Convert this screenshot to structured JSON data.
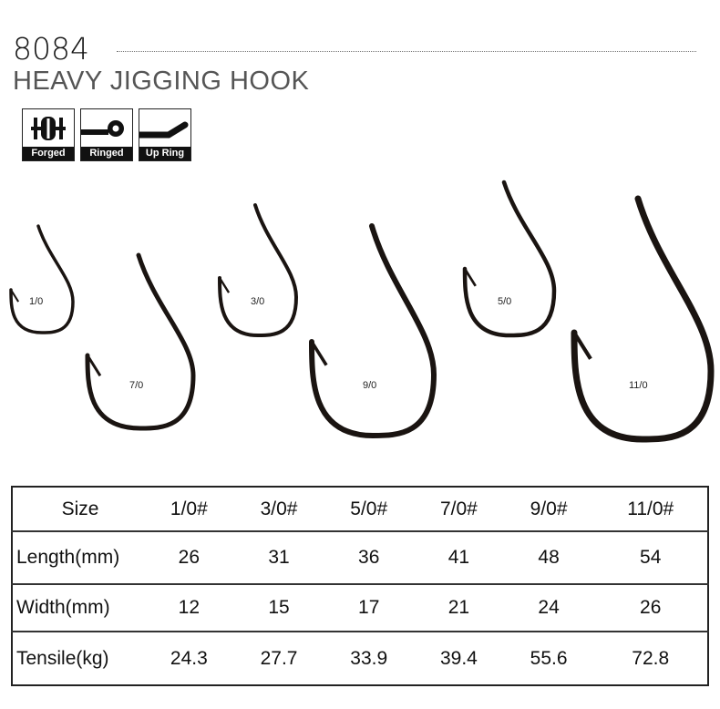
{
  "header": {
    "model": "8084",
    "title": "HEAVY JIGGING HOOK"
  },
  "badges": [
    {
      "label": "Forged",
      "icon": "forged-icon"
    },
    {
      "label": "Ringed",
      "icon": "ringed-eye-icon"
    },
    {
      "label": "Up Ring",
      "icon": "up-ring-icon"
    }
  ],
  "hooks": [
    {
      "size": "1/0"
    },
    {
      "size": "7/0"
    },
    {
      "size": "3/0"
    },
    {
      "size": "9/0"
    },
    {
      "size": "5/0"
    },
    {
      "size": "11/0"
    }
  ],
  "table": {
    "headers": [
      "Size",
      "1/0#",
      "3/0#",
      "5/0#",
      "7/0#",
      "9/0#",
      "11/0#"
    ],
    "rows": [
      [
        "Length(mm)",
        "26",
        "31",
        "36",
        "41",
        "48",
        "54"
      ],
      [
        "Width(mm)",
        "12",
        "15",
        "17",
        "21",
        "24",
        "26"
      ],
      [
        "Tensile(kg)",
        "24.3",
        "27.7",
        "33.9",
        "39.4",
        "55.6",
        "72.8"
      ]
    ]
  },
  "colors": {
    "hook": "#1a1411",
    "text": "#111111",
    "subtitle": "#555555"
  }
}
